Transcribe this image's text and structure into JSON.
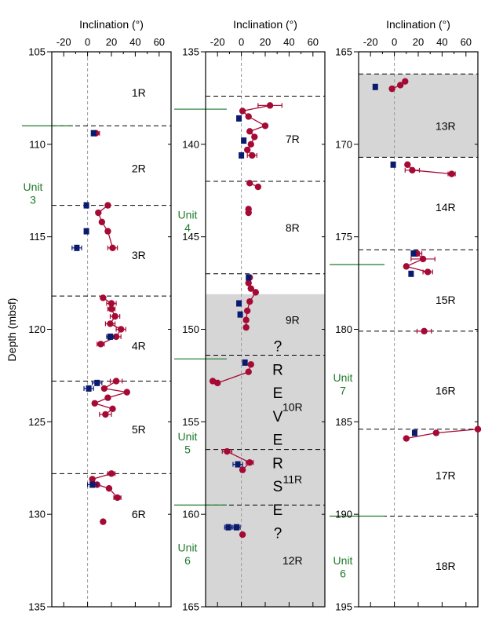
{
  "chart_data": {
    "type": "scatter",
    "ylabel": "Depth (mbsf)",
    "colors": {
      "circle_series": "#a50a35",
      "square_series": "#0a1a6e",
      "shade": "#d6d6d6",
      "unit_line": "#1f7a2a",
      "unit_text": "#1f7a2a",
      "core_line": "#000000"
    },
    "panels": [
      {
        "xlabel": "Inclination (°)",
        "xlim": [
          -30,
          70
        ],
        "ylim": [
          135,
          105
        ],
        "xticks": [
          "-20",
          "0",
          "20",
          "40",
          "60"
        ],
        "yticks": [
          "105",
          "110",
          "115",
          "120",
          "125",
          "130",
          "135"
        ],
        "shaded": [],
        "core_breaks": [
          109.0,
          113.3,
          118.2,
          122.8,
          127.8
        ],
        "core_labels": [
          {
            "text": "1R",
            "depth": 107.2,
            "x": 35
          },
          {
            "text": "2R",
            "depth": 111.3,
            "x": 35
          },
          {
            "text": "3R",
            "depth": 116.0,
            "x": 35
          },
          {
            "text": "4R",
            "depth": 120.9,
            "x": 35
          },
          {
            "text": "5R",
            "depth": 125.4,
            "x": 35
          },
          {
            "text": "6R",
            "depth": 130.0,
            "x": 35
          }
        ],
        "unit_lines": [
          109.0
        ],
        "unit_labels": [
          {
            "text": "Unit",
            "depth": 112.3
          },
          {
            "text": "3",
            "depth": 113.0
          }
        ],
        "circle_series": [
          {
            "depth": 109.4,
            "incl": 7,
            "err": 3
          },
          {
            "depth": 113.3,
            "incl": 17,
            "err": 0
          },
          {
            "depth": 113.7,
            "incl": 9,
            "err": 0
          },
          {
            "depth": 114.2,
            "incl": 12,
            "err": 0
          },
          {
            "depth": 114.7,
            "incl": 17,
            "err": 0
          },
          {
            "depth": 115.6,
            "incl": 21,
            "err": 4
          },
          {
            "depth": 118.3,
            "incl": 13,
            "err": 0
          },
          {
            "depth": 118.6,
            "incl": 20,
            "err": 4
          },
          {
            "depth": 118.9,
            "incl": 20,
            "err": 3
          },
          {
            "depth": 119.3,
            "incl": 23,
            "err": 4
          },
          {
            "depth": 119.7,
            "incl": 19,
            "err": 4
          },
          {
            "depth": 120.0,
            "incl": 28,
            "err": 4
          },
          {
            "depth": 120.4,
            "incl": 24,
            "err": 4
          },
          {
            "depth": 120.8,
            "incl": 11,
            "err": 3
          },
          {
            "depth": 122.8,
            "incl": 24,
            "err": 5
          },
          {
            "depth": 123.2,
            "incl": 14,
            "err": 0
          },
          {
            "depth": 123.4,
            "incl": 33,
            "err": 0
          },
          {
            "depth": 123.7,
            "incl": 17,
            "err": 0
          },
          {
            "depth": 124.0,
            "incl": 6,
            "err": 0
          },
          {
            "depth": 124.3,
            "incl": 21,
            "err": 0
          },
          {
            "depth": 124.6,
            "incl": 15,
            "err": 5
          },
          {
            "depth": 127.8,
            "incl": 20,
            "err": 3
          },
          {
            "depth": 128.1,
            "incl": 4,
            "err": 0
          },
          {
            "depth": 128.4,
            "incl": 8,
            "err": 0
          },
          {
            "depth": 128.6,
            "incl": 18,
            "err": 0
          },
          {
            "depth": 129.1,
            "incl": 25,
            "err": 3
          },
          {
            "depth": 130.4,
            "incl": 13,
            "err": 0
          }
        ],
        "square_series": [
          {
            "depth": 109.4,
            "incl": 5,
            "err": 0
          },
          {
            "depth": 113.3,
            "incl": -1,
            "err": 0
          },
          {
            "depth": 114.7,
            "incl": -1,
            "err": 0
          },
          {
            "depth": 115.6,
            "incl": -9,
            "err": 4
          },
          {
            "depth": 120.4,
            "incl": 19,
            "err": 3
          },
          {
            "depth": 122.9,
            "incl": 8,
            "err": 4
          },
          {
            "depth": 123.2,
            "incl": 1,
            "err": 4
          },
          {
            "depth": 128.4,
            "incl": 4,
            "err": 4
          }
        ],
        "circle_links": [
          [
            1,
            2
          ],
          [
            2,
            3
          ],
          [
            3,
            4
          ],
          [
            4,
            5
          ],
          [
            6,
            7
          ],
          [
            7,
            8
          ],
          [
            8,
            9
          ],
          [
            9,
            10
          ],
          [
            10,
            11
          ],
          [
            11,
            12
          ],
          [
            12,
            13
          ],
          [
            14,
            15
          ],
          [
            15,
            16
          ],
          [
            16,
            17
          ],
          [
            17,
            18
          ],
          [
            18,
            19
          ],
          [
            19,
            20
          ],
          [
            21,
            22
          ],
          [
            22,
            23
          ],
          [
            23,
            24
          ],
          [
            24,
            25
          ]
        ],
        "annotations": []
      },
      {
        "xlabel": "Inclination (°)",
        "xlim": [
          -30,
          70
        ],
        "ylim": [
          165,
          135
        ],
        "xticks": [
          "-20",
          "0",
          "20",
          "40",
          "60"
        ],
        "yticks": [
          "135",
          "140",
          "145",
          "150",
          "155",
          "160",
          "165"
        ],
        "shaded": [
          [
            148.1,
            165
          ]
        ],
        "core_breaks": [
          137.4,
          142.0,
          147.0,
          151.4,
          156.5,
          159.5
        ],
        "core_labels": [
          {
            "text": "7R",
            "depth": 139.7,
            "x": 35
          },
          {
            "text": "8R",
            "depth": 144.5,
            "x": 35
          },
          {
            "text": "9R",
            "depth": 149.5,
            "x": 35
          },
          {
            "text": "10R",
            "depth": 154.2,
            "x": 35
          },
          {
            "text": "11R",
            "depth": 158.1,
            "x": 35
          },
          {
            "text": "12R",
            "depth": 162.5,
            "x": 35
          }
        ],
        "unit_lines": [
          138.1,
          151.6,
          159.5
        ],
        "unit_labels": [
          {
            "text": "Unit",
            "depth": 143.8
          },
          {
            "text": "4",
            "depth": 144.5
          },
          {
            "text": "Unit",
            "depth": 155.8
          },
          {
            "text": "5",
            "depth": 156.5
          },
          {
            "text": "Unit",
            "depth": 161.8
          },
          {
            "text": "6",
            "depth": 162.5
          }
        ],
        "circle_series": [
          {
            "depth": 137.9,
            "incl": 24,
            "err": 10
          },
          {
            "depth": 138.2,
            "incl": 1,
            "err": 0
          },
          {
            "depth": 138.5,
            "incl": 6,
            "err": 0
          },
          {
            "depth": 139.0,
            "incl": 20,
            "err": 0
          },
          {
            "depth": 139.3,
            "incl": 7,
            "err": 0
          },
          {
            "depth": 139.6,
            "incl": 11,
            "err": 0
          },
          {
            "depth": 140.0,
            "incl": 8,
            "err": 0
          },
          {
            "depth": 140.3,
            "incl": 5,
            "err": 0
          },
          {
            "depth": 140.6,
            "incl": 9,
            "err": 4
          },
          {
            "depth": 142.1,
            "incl": 7,
            "err": 0
          },
          {
            "depth": 142.3,
            "incl": 14,
            "err": 0
          },
          {
            "depth": 143.5,
            "incl": 6,
            "err": 0
          },
          {
            "depth": 143.7,
            "incl": 6,
            "err": 0
          },
          {
            "depth": 147.2,
            "incl": 7,
            "err": 0
          },
          {
            "depth": 147.5,
            "incl": 6,
            "err": 0
          },
          {
            "depth": 147.8,
            "incl": 8,
            "err": 0
          },
          {
            "depth": 148.0,
            "incl": 12,
            "err": 0
          },
          {
            "depth": 148.5,
            "incl": 7,
            "err": 0
          },
          {
            "depth": 149.0,
            "incl": 5,
            "err": 0
          },
          {
            "depth": 149.5,
            "incl": 4,
            "err": 0
          },
          {
            "depth": 149.9,
            "incl": 4,
            "err": 0
          },
          {
            "depth": 151.9,
            "incl": 8,
            "err": 0
          },
          {
            "depth": 152.3,
            "incl": 6,
            "err": 0
          },
          {
            "depth": 152.9,
            "incl": -20,
            "err": 0
          },
          {
            "depth": 152.8,
            "incl": -24,
            "err": 0
          },
          {
            "depth": 156.6,
            "incl": -12,
            "err": 4
          },
          {
            "depth": 157.2,
            "incl": 7,
            "err": 3
          },
          {
            "depth": 157.6,
            "incl": 1,
            "err": 0
          },
          {
            "depth": 161.1,
            "incl": 1,
            "err": 0
          }
        ],
        "square_series": [
          {
            "depth": 138.6,
            "incl": -2,
            "err": 0
          },
          {
            "depth": 139.8,
            "incl": 2,
            "err": 0
          },
          {
            "depth": 140.6,
            "incl": 0,
            "err": 0
          },
          {
            "depth": 147.2,
            "incl": 6,
            "err": 0
          },
          {
            "depth": 148.6,
            "incl": -2,
            "err": 0
          },
          {
            "depth": 149.2,
            "incl": -1,
            "err": 0
          },
          {
            "depth": 151.8,
            "incl": 3,
            "err": 0
          },
          {
            "depth": 157.3,
            "incl": -3,
            "err": 4
          },
          {
            "depth": 160.7,
            "incl": -11,
            "err": 3
          },
          {
            "depth": 160.7,
            "incl": -4,
            "err": 3
          }
        ],
        "circle_links": [
          [
            0,
            1
          ],
          [
            1,
            2
          ],
          [
            2,
            3
          ],
          [
            3,
            4
          ],
          [
            4,
            5
          ],
          [
            5,
            6
          ],
          [
            6,
            7
          ],
          [
            7,
            8
          ],
          [
            9,
            10
          ],
          [
            11,
            12
          ],
          [
            13,
            14
          ],
          [
            14,
            15
          ],
          [
            15,
            16
          ],
          [
            16,
            17
          ],
          [
            17,
            18
          ],
          [
            18,
            19
          ],
          [
            19,
            20
          ],
          [
            21,
            22
          ],
          [
            22,
            23
          ],
          [
            23,
            24
          ],
          [
            25,
            26
          ],
          [
            26,
            27
          ]
        ],
        "annotations": [
          "?",
          "R",
          "E",
          "V",
          "E",
          "R",
          "S",
          "E",
          "?"
        ]
      },
      {
        "xlabel": "Inclination (°)",
        "xlim": [
          -30,
          70
        ],
        "ylim": [
          195,
          165
        ],
        "xticks": [
          "-20",
          "0",
          "20",
          "40",
          "60"
        ],
        "yticks": [
          "165",
          "170",
          "175",
          "180",
          "185",
          "190",
          "195"
        ],
        "shaded": [
          [
            166.2,
            170.7
          ]
        ],
        "core_breaks": [
          166.2,
          170.7,
          175.7,
          180.1,
          185.4,
          190.1
        ],
        "core_labels": [
          {
            "text": "13R",
            "depth": 169.0,
            "x": 35
          },
          {
            "text": "14R",
            "depth": 173.4,
            "x": 35
          },
          {
            "text": "15R",
            "depth": 178.4,
            "x": 35
          },
          {
            "text": "16R",
            "depth": 183.3,
            "x": 35
          },
          {
            "text": "17R",
            "depth": 187.9,
            "x": 35
          },
          {
            "text": "18R",
            "depth": 192.8,
            "x": 35
          }
        ],
        "unit_lines": [
          176.5,
          190.1
        ],
        "unit_labels": [
          {
            "text": "Unit",
            "depth": 182.6
          },
          {
            "text": "7",
            "depth": 183.3
          },
          {
            "text": "Unit",
            "depth": 192.5
          },
          {
            "text": "6",
            "depth": 193.2
          }
        ],
        "circle_series": [
          {
            "depth": 166.6,
            "incl": 9,
            "err": 0
          },
          {
            "depth": 166.8,
            "incl": 5,
            "err": 0
          },
          {
            "depth": 167.0,
            "incl": -2,
            "err": 0
          },
          {
            "depth": 171.1,
            "incl": 11,
            "err": 0
          },
          {
            "depth": 171.4,
            "incl": 15,
            "err": 6
          },
          {
            "depth": 171.6,
            "incl": 48,
            "err": 3
          },
          {
            "depth": 175.9,
            "incl": 19,
            "err": 4
          },
          {
            "depth": 176.2,
            "incl": 24,
            "err": 10
          },
          {
            "depth": 176.6,
            "incl": 10,
            "err": 0
          },
          {
            "depth": 176.9,
            "incl": 28,
            "err": 4
          },
          {
            "depth": 180.1,
            "incl": 25,
            "err": 6
          },
          {
            "depth": 185.4,
            "incl": 70,
            "err": 0
          },
          {
            "depth": 185.6,
            "incl": 35,
            "err": 0
          },
          {
            "depth": 185.9,
            "incl": 10,
            "err": 0
          }
        ],
        "square_series": [
          {
            "depth": 166.9,
            "incl": -16,
            "err": 0
          },
          {
            "depth": 171.1,
            "incl": -1,
            "err": 0
          },
          {
            "depth": 175.9,
            "incl": 16,
            "err": 0
          },
          {
            "depth": 177.0,
            "incl": 14,
            "err": 0
          },
          {
            "depth": 185.6,
            "incl": 17,
            "err": 0
          }
        ],
        "circle_links": [
          [
            0,
            1
          ],
          [
            1,
            2
          ],
          [
            3,
            4
          ],
          [
            4,
            5
          ],
          [
            6,
            7
          ],
          [
            7,
            8
          ],
          [
            8,
            9
          ],
          [
            11,
            12
          ],
          [
            12,
            13
          ]
        ],
        "annotations": []
      }
    ]
  }
}
